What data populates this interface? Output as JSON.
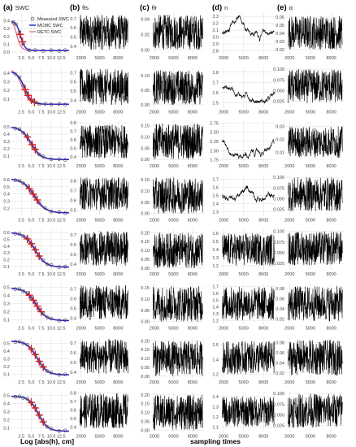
{
  "figure": {
    "col_titles": [
      {
        "letter": "(a)",
        "label": "SWC"
      },
      {
        "letter": "(b)",
        "label": "θs"
      },
      {
        "letter": "(c)",
        "label": "θr"
      },
      {
        "letter": "(d)",
        "label": "n"
      },
      {
        "letter": "(e)",
        "label": "α"
      }
    ],
    "xlabel_swc": "Log [abs(h), cm]",
    "xlabel_trace": "sampling times",
    "legend": [
      "Measured SWC",
      "MCMC SWC",
      "RETC SWC"
    ],
    "colors": {
      "mcmc": "#1f1fd0",
      "retc": "#e07a88",
      "measured": "#555555",
      "trace": "#000000",
      "cross": "#e41a1c",
      "grid": "#dcdcdc"
    }
  },
  "chart_data": {
    "type": "line",
    "layout": "8 rows x 5 columns of panels",
    "swc_panels": {
      "x_ticks": [
        "2.5",
        "5.0",
        "7.5",
        "10.0",
        "12.5"
      ],
      "x_range": [
        0,
        14.5
      ],
      "rows": [
        {
          "y_ticks": [
            "0.0",
            "0.1",
            "0.2",
            "0.3",
            "0.4"
          ],
          "y_range": [
            -0.02,
            0.5
          ],
          "ts": 0.4,
          "tr": 0.02,
          "mid": 2.3,
          "k": 3.5,
          "retc_ts": 0.44,
          "retc_mid": 1.3,
          "measured_x": [
            0.5,
            1.2,
            2.0,
            3.0,
            4.5,
            6.0,
            8.0,
            10.0,
            12.0,
            13.5
          ],
          "red_x": [
            2.2,
            2.8
          ]
        },
        {
          "y_ticks": [
            "0.1",
            "0.2",
            "0.3",
            "0.4"
          ],
          "y_range": [
            0.0,
            0.47
          ],
          "ts": 0.42,
          "tr": 0.04,
          "mid": 3.3,
          "k": 2.2,
          "retc_ts": 0.45,
          "retc_mid": 2.7,
          "measured_x": [
            1.0,
            2.0,
            3.0,
            4.0,
            5.0,
            6.0,
            7.0,
            8.5,
            10.0,
            12.0,
            13.5
          ],
          "red_x": [
            3.5,
            4.2,
            5.0,
            5.8
          ]
        },
        {
          "y_ticks": [
            "0.1",
            "0.2",
            "0.3",
            "0.4",
            "0.5"
          ],
          "y_range": [
            0.02,
            0.58
          ],
          "ts": 0.5,
          "tr": 0.05,
          "mid": 5.0,
          "k": 1.6,
          "retc_ts": 0.51,
          "retc_mid": 4.6,
          "measured_x": [
            1.0,
            2.0,
            3.0,
            4.0,
            5.0,
            6.0,
            7.0,
            8.0,
            10.0,
            12.0,
            13.5
          ],
          "red_x": [
            4.0,
            5.2,
            6.0
          ]
        },
        {
          "y_ticks": [
            "0.2",
            "0.3",
            "0.4",
            "0.5",
            "0.6"
          ],
          "y_range": [
            0.1,
            0.66
          ],
          "ts": 0.61,
          "tr": 0.14,
          "mid": 5.8,
          "k": 1.4,
          "retc_ts": 0.61,
          "retc_mid": 5.5,
          "measured_x": [
            1.0,
            2.0,
            3.0,
            4.0,
            5.0,
            6.0,
            7.0,
            8.5,
            10.0,
            12.0,
            13.5
          ],
          "red_x": [
            4.5,
            5.5,
            6.5
          ]
        },
        {
          "y_ticks": [
            "0.1",
            "0.2",
            "0.3",
            "0.4",
            "0.5",
            "0.6"
          ],
          "y_range": [
            0.05,
            0.65
          ],
          "ts": 0.6,
          "tr": 0.09,
          "mid": 6.0,
          "k": 1.5,
          "retc_ts": 0.6,
          "retc_mid": 5.8,
          "measured_x": [
            1.0,
            2.0,
            3.0,
            4.0,
            5.0,
            6.0,
            7.0,
            8.0,
            9.0,
            10.0,
            12.0,
            13.5
          ],
          "red_x": [
            4.0,
            5.0,
            6.0,
            7.0
          ]
        },
        {
          "y_ticks": [
            "0.1",
            "0.2",
            "0.3",
            "0.4",
            "0.5"
          ],
          "y_range": [
            0.05,
            0.55
          ],
          "ts": 0.49,
          "tr": 0.09,
          "mid": 6.2,
          "k": 1.5,
          "retc_ts": 0.49,
          "retc_mid": 6.0,
          "measured_x": [
            1.0,
            2.0,
            3.0,
            4.0,
            5.0,
            6.0,
            7.0,
            8.0,
            9.0,
            10.0,
            12.0,
            13.5
          ],
          "red_x": [
            4.5,
            5.5,
            6.5,
            7.5
          ]
        },
        {
          "y_ticks": [
            "0.1",
            "0.2",
            "0.3",
            "0.4",
            "0.5"
          ],
          "y_range": [
            0.05,
            0.58
          ],
          "ts": 0.53,
          "tr": 0.09,
          "mid": 6.5,
          "k": 1.6,
          "retc_ts": 0.53,
          "retc_mid": 6.3,
          "measured_x": [
            1.0,
            2.0,
            3.0,
            4.0,
            5.0,
            6.0,
            7.0,
            8.0,
            9.0,
            10.0,
            12.0,
            13.5
          ],
          "red_x": [
            5.0,
            6.0,
            7.0,
            8.0
          ]
        },
        {
          "y_ticks": [
            "0.1",
            "0.2",
            "0.3",
            "0.4",
            "0.5"
          ],
          "y_range": [
            0.05,
            0.55
          ],
          "ts": 0.49,
          "tr": 0.06,
          "mid": 6.8,
          "k": 1.7,
          "retc_ts": 0.49,
          "retc_mid": 6.6,
          "measured_x": [
            1.0,
            2.0,
            3.0,
            4.0,
            5.0,
            6.0,
            7.0,
            8.0,
            9.0,
            10.0,
            12.0,
            13.5
          ],
          "red_x": [
            5.0,
            6.0,
            7.0,
            8.0
          ]
        }
      ]
    },
    "trace_panels": {
      "x_ticks": [
        2000,
        5000,
        8000
      ],
      "x_range": [
        1500,
        9800
      ],
      "rows": [
        [
          {
            "y_ticks": [
              "0.4",
              "0.5",
              "0.6",
              "0.7"
            ],
            "y_range": [
              0.32,
              0.76
            ],
            "style": "noise",
            "lo": 0.36,
            "hi": 0.74
          },
          {
            "y_ticks": [
              "0.00",
              "0.02",
              "0.04"
            ],
            "y_range": [
              -0.005,
              0.048
            ],
            "style": "noise",
            "lo": 0.0,
            "hi": 0.046
          },
          {
            "y_ticks": [
              "2.8",
              "2.9",
              "3.0",
              "3.1",
              "3.2",
              "3.3"
            ],
            "y_range": [
              2.76,
              3.35
            ],
            "style": "walk",
            "lo": 2.8,
            "hi": 3.3
          },
          {
            "y_ticks": [
              "0.02",
              "0.03",
              "0.04",
              "0.05",
              "0.06"
            ],
            "y_range": [
              0.015,
              0.065
            ],
            "style": "noise",
            "lo": 0.02,
            "hi": 0.062
          }
        ],
        [
          {
            "y_ticks": [
              "0.4",
              "0.5",
              "0.6",
              "0.7"
            ],
            "y_range": [
              0.32,
              0.76
            ],
            "style": "noise",
            "lo": 0.35,
            "hi": 0.74
          },
          {
            "y_ticks": [
              "0.00",
              "0.05",
              "0.10"
            ],
            "y_range": [
              -0.01,
              0.13
            ],
            "style": "noise",
            "lo": 0.0,
            "hi": 0.12
          },
          {
            "y_ticks": [
              "1.5",
              "1.6",
              "1.7",
              "1.8"
            ],
            "y_range": [
              1.45,
              1.85
            ],
            "style": "walk",
            "lo": 1.5,
            "hi": 1.8
          },
          {
            "y_ticks": [
              "0.025",
              "0.050",
              "0.075",
              "0.100"
            ],
            "y_range": [
              0.01,
              0.105
            ],
            "style": "noise",
            "lo": 0.02,
            "hi": 0.1
          }
        ],
        [
          {
            "y_ticks": [
              "0.4",
              "0.5",
              "0.6",
              "0.7",
              "0.8"
            ],
            "y_range": [
              0.34,
              0.82
            ],
            "style": "noise",
            "lo": 0.38,
            "hi": 0.78
          },
          {
            "y_ticks": [
              "0.00",
              "0.05",
              "0.10",
              "0.15"
            ],
            "y_range": [
              -0.01,
              0.17
            ],
            "style": "noise",
            "lo": 0.0,
            "hi": 0.16
          },
          {
            "y_ticks": [
              "1.75",
              "2.00",
              "2.25",
              "2.50",
              "2.75"
            ],
            "y_range": [
              1.7,
              2.8
            ],
            "style": "walk",
            "lo": 1.8,
            "hi": 2.7
          },
          {
            "y_ticks": [
              "0.01",
              "0.02",
              "0.03"
            ],
            "y_range": [
              0.003,
              0.034
            ],
            "style": "noise",
            "lo": 0.006,
            "hi": 0.03
          }
        ],
        [
          {
            "y_ticks": [
              "0.5",
              "0.6",
              "0.7",
              "0.8"
            ],
            "y_range": [
              0.44,
              0.86
            ],
            "style": "noise",
            "lo": 0.5,
            "hi": 0.84
          },
          {
            "y_ticks": [
              "0.00",
              "0.05",
              "0.10",
              "0.15"
            ],
            "y_range": [
              -0.01,
              0.17
            ],
            "style": "noise",
            "lo": 0.0,
            "hi": 0.16
          },
          {
            "y_ticks": [
              "1.3",
              "1.4",
              "1.5",
              "1.6",
              "1.7"
            ],
            "y_range": [
              1.25,
              1.75
            ],
            "style": "walk",
            "lo": 1.3,
            "hi": 1.7
          },
          {
            "y_ticks": [
              "0.025",
              "0.050",
              "0.075",
              "0.100"
            ],
            "y_range": [
              0.01,
              0.105
            ],
            "style": "noise",
            "lo": 0.02,
            "hi": 0.1
          }
        ],
        [
          {
            "y_ticks": [
              "0.4",
              "0.5",
              "0.6",
              "0.7"
            ],
            "y_range": [
              0.34,
              0.76
            ],
            "style": "noise",
            "lo": 0.38,
            "hi": 0.74
          },
          {
            "y_ticks": [
              "0.00",
              "0.05",
              "0.10",
              "0.15",
              "0.20"
            ],
            "y_range": [
              -0.01,
              0.22
            ],
            "style": "noise",
            "lo": 0.0,
            "hi": 0.2
          },
          {
            "y_ticks": [
              "1.2",
              "1.3",
              "1.4",
              "1.5",
              "1.6"
            ],
            "y_range": [
              1.15,
              1.65
            ],
            "style": "noise",
            "lo": 1.2,
            "hi": 1.6
          },
          {
            "y_ticks": [
              "0.025",
              "0.050",
              "0.075",
              "0.100"
            ],
            "y_range": [
              0.01,
              0.105
            ],
            "style": "noise",
            "lo": 0.02,
            "hi": 0.1
          }
        ],
        [
          {
            "y_ticks": [
              "0.4",
              "0.5",
              "0.6",
              "0.7"
            ],
            "y_range": [
              0.34,
              0.76
            ],
            "style": "noise",
            "lo": 0.38,
            "hi": 0.74
          },
          {
            "y_ticks": [
              "0.00",
              "0.05",
              "0.10",
              "0.15"
            ],
            "y_range": [
              -0.01,
              0.17
            ],
            "style": "noise",
            "lo": 0.0,
            "hi": 0.16
          },
          {
            "y_ticks": [
              "1.2",
              "1.3",
              "1.4",
              "1.5",
              "1.6",
              "1.7"
            ],
            "y_range": [
              1.15,
              1.75
            ],
            "style": "noise",
            "lo": 1.2,
            "hi": 1.7
          },
          {
            "y_ticks": [
              "0.02",
              "0.04",
              "0.06",
              "0.08"
            ],
            "y_range": [
              0.01,
              0.09
            ],
            "style": "noise",
            "lo": 0.015,
            "hi": 0.085
          }
        ],
        [
          {
            "y_ticks": [
              "0.4",
              "0.5",
              "0.6",
              "0.7"
            ],
            "y_range": [
              0.34,
              0.76
            ],
            "style": "noise",
            "lo": 0.38,
            "hi": 0.74
          },
          {
            "y_ticks": [
              "0.00",
              "0.05",
              "0.10",
              "0.15",
              "0.20"
            ],
            "y_range": [
              -0.01,
              0.22
            ],
            "style": "noise",
            "lo": 0.0,
            "hi": 0.2
          },
          {
            "y_ticks": [
              "1.2",
              "1.4",
              "1.6"
            ],
            "y_range": [
              1.15,
              1.7
            ],
            "style": "noise",
            "lo": 1.2,
            "hi": 1.65
          },
          {
            "y_ticks": [
              "0.02",
              "0.04",
              "0.06",
              "0.08"
            ],
            "y_range": [
              0.01,
              0.09
            ],
            "style": "noise",
            "lo": 0.015,
            "hi": 0.085
          }
        ],
        [
          {
            "y_ticks": [
              "0.4",
              "0.5",
              "0.6",
              "0.7",
              "0.8"
            ],
            "y_range": [
              0.34,
              0.82
            ],
            "style": "noise",
            "lo": 0.38,
            "hi": 0.8
          },
          {
            "y_ticks": [
              "0.00",
              "0.05",
              "0.10",
              "0.15",
              "0.20"
            ],
            "y_range": [
              -0.01,
              0.22
            ],
            "style": "noise",
            "lo": 0.0,
            "hi": 0.2
          },
          {
            "y_ticks": [
              "1.1",
              "1.2",
              "1.3",
              "1.4"
            ],
            "y_range": [
              1.05,
              1.45
            ],
            "style": "noise",
            "lo": 1.1,
            "hi": 1.4
          },
          {
            "y_ticks": [
              "0.025",
              "0.050",
              "0.075",
              "0.100"
            ],
            "y_range": [
              0.01,
              0.105
            ],
            "style": "noise",
            "lo": 0.02,
            "hi": 0.1
          }
        ]
      ]
    }
  }
}
